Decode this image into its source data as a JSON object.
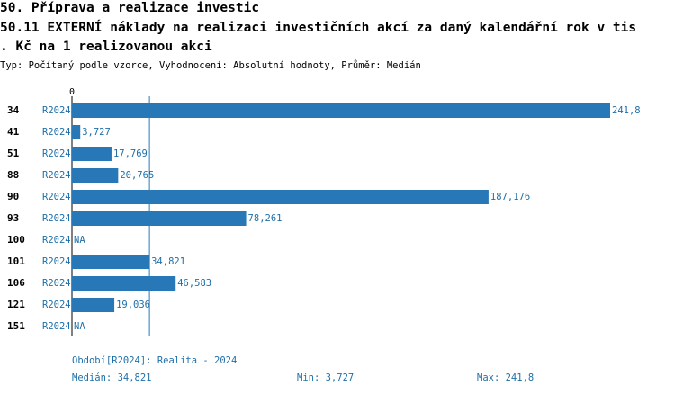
{
  "chart_data": {
    "type": "bar",
    "orientation": "horizontal",
    "title": [
      "50. Příprava a realizace investic",
      "50.11 EXTERNÍ náklady na realizaci investičních akcí za daný kalendářní rok v tis",
      ". Kč na 1 realizovanou akci"
    ],
    "subtitle": "Typ: Počítaný podle vzorce, Vyhodnocení: Absolutní hodnoty, Průměr: Medián",
    "categories": [
      "34",
      "41",
      "51",
      "88",
      "90",
      "93",
      "100",
      "101",
      "106",
      "121",
      "151"
    ],
    "series": [
      {
        "name": "R2024",
        "color": "#2878b8",
        "values": [
          241.8,
          3.727,
          17.769,
          20.765,
          187.176,
          78.261,
          null,
          34.821,
          46.583,
          19.036,
          null
        ],
        "value_labels": [
          "241,8",
          "3,727",
          "17,769",
          "20,765",
          "187,176",
          "78,261",
          "NA",
          "34,821",
          "46,583",
          "19,036",
          "NA"
        ]
      }
    ],
    "xlim": [
      0,
      241.8
    ],
    "xticks": [
      0
    ],
    "median": {
      "value": 34.821,
      "label": "Medián: 34,821"
    },
    "footer": {
      "period": "Období[R2024]: Realita - 2024",
      "min": "Min: 3,727",
      "max": "Max: 241,8"
    }
  }
}
